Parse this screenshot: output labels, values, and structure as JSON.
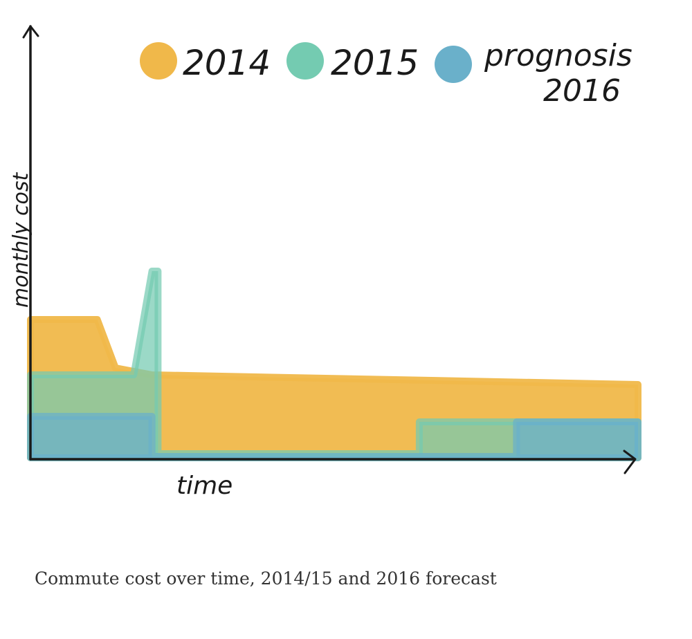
{
  "chart_data": {
    "type": "area",
    "title": "",
    "xlabel": "time",
    "ylabel": "monthly cost",
    "x_ticks": [],
    "y_ticks": [],
    "xlim": [
      0,
      100
    ],
    "ylim": [
      0,
      100
    ],
    "grid": false,
    "legend_position": "top",
    "series": [
      {
        "name": "2014",
        "label": "2014",
        "color": "#F0B84A",
        "points": [
          [
            0,
            100
          ],
          [
            11,
            100
          ],
          [
            14,
            65
          ],
          [
            20,
            60
          ],
          [
            100,
            53
          ],
          [
            100,
            0
          ],
          [
            0,
            0
          ]
        ]
      },
      {
        "name": "2015",
        "label": "2015",
        "color": "#74CBB1",
        "points": [
          [
            0,
            60
          ],
          [
            17,
            60
          ],
          [
            20,
            135
          ],
          [
            21,
            135
          ],
          [
            21,
            3
          ],
          [
            64,
            3
          ],
          [
            64,
            26
          ],
          [
            100,
            26
          ],
          [
            100,
            0
          ],
          [
            0,
            0
          ]
        ]
      },
      {
        "name": "prognosis 2016",
        "label": "prognosis\n2016",
        "color": "#6AB0CA",
        "points": [
          [
            0,
            30
          ],
          [
            20,
            30
          ],
          [
            20,
            1
          ],
          [
            80,
            1
          ],
          [
            80,
            26
          ],
          [
            100,
            26
          ],
          [
            100,
            0
          ],
          [
            0,
            0
          ]
        ]
      }
    ]
  },
  "caption": "Commute cost over time, 2014/15 and 2016 forecast"
}
